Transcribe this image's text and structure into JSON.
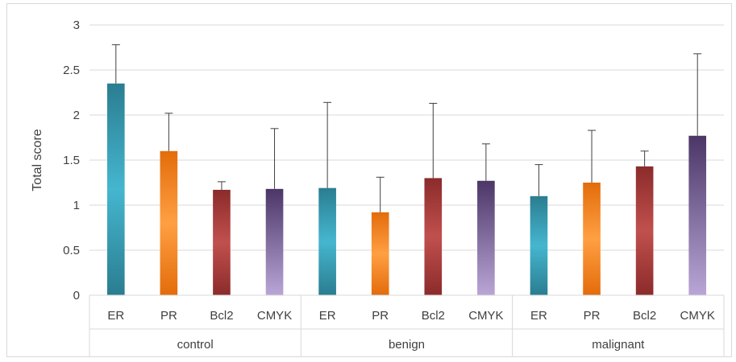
{
  "chart_data": {
    "type": "bar",
    "ylabel": "Total score",
    "xlabel": "",
    "ylim": [
      0,
      3
    ],
    "yticks": [
      "0",
      "0.5",
      "1",
      "1.5",
      "2",
      "2.5",
      "3"
    ],
    "grid": true,
    "legend": "none",
    "groups": [
      {
        "name": "control",
        "categories": [
          "ER",
          "PR",
          "Bcl2",
          "CMYK"
        ],
        "values": [
          2.35,
          1.6,
          1.17,
          1.18
        ],
        "errors": [
          0.43,
          0.42,
          0.09,
          0.67
        ]
      },
      {
        "name": "benign",
        "categories": [
          "ER",
          "PR",
          "Bcl2",
          "CMYK"
        ],
        "values": [
          1.19,
          0.92,
          1.3,
          1.27
        ],
        "errors": [
          0.95,
          0.39,
          0.83,
          0.41
        ]
      },
      {
        "name": "malignant",
        "categories": [
          "ER",
          "PR",
          "Bcl2",
          "CMYK"
        ],
        "values": [
          1.1,
          1.25,
          1.43,
          1.77
        ],
        "errors": [
          0.35,
          0.58,
          0.17,
          0.91
        ]
      }
    ],
    "colors": {
      "ER": {
        "dark": "#2a7d90",
        "light": "#45b6cf"
      },
      "PR": {
        "dark": "#e36c0a",
        "light": "#ff9f43"
      },
      "Bcl2": {
        "dark": "#8b2b2b",
        "light": "#c0504d"
      },
      "CMYK": {
        "dark": "#4b3667",
        "light": "#b9a6d6"
      }
    },
    "error_bar_color": "#404040"
  }
}
